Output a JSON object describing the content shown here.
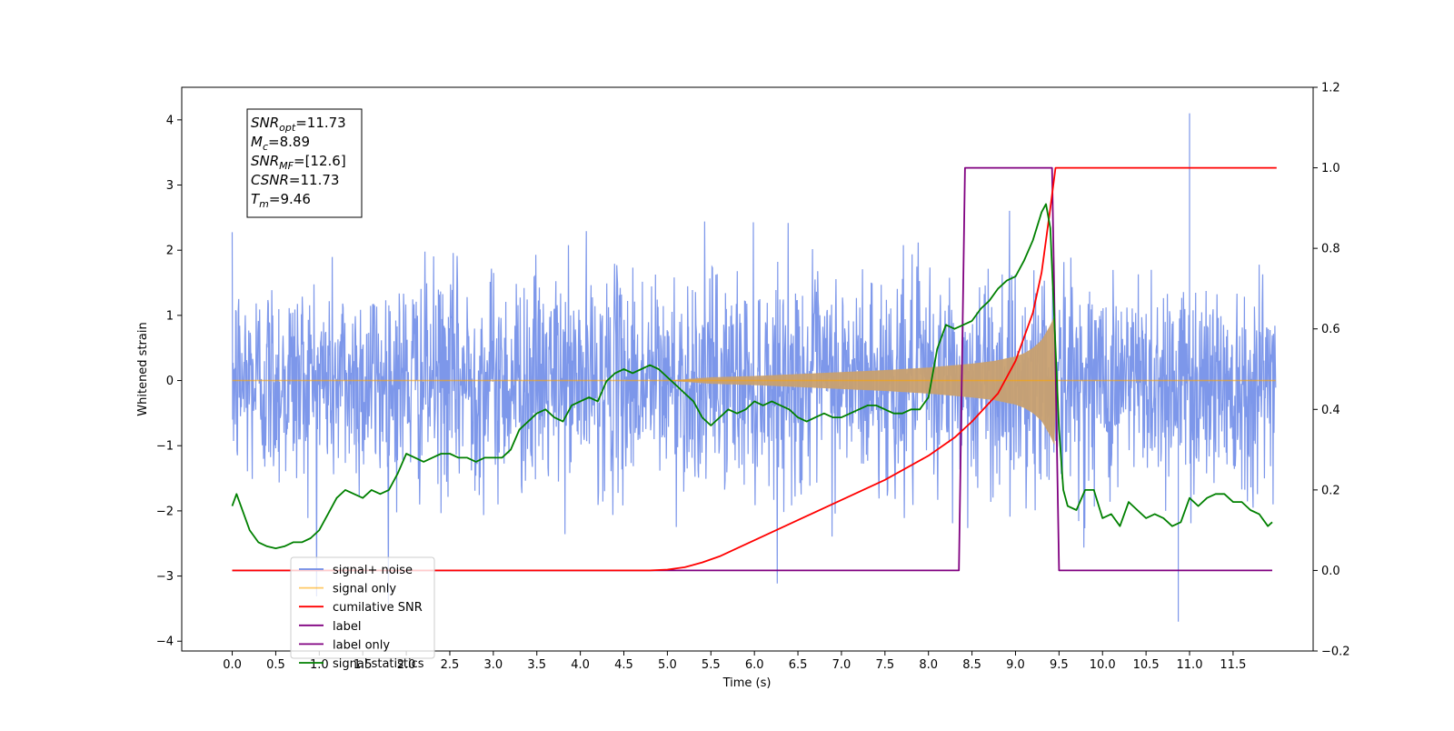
{
  "chart_data": {
    "type": "line",
    "xlabel": "Time (s)",
    "ylabel": "Whitened strain",
    "xlim": [
      -0.58,
      12.42
    ],
    "ylim": [
      -4.15,
      4.5
    ],
    "y2lim": [
      -0.2,
      1.2
    ],
    "xticks": [
      "0.0",
      "0.5",
      "1.0",
      "1.5",
      "2.0",
      "2.5",
      "3.0",
      "3.5",
      "4.0",
      "4.5",
      "5.0",
      "5.5",
      "6.0",
      "6.5",
      "7.0",
      "7.5",
      "8.0",
      "8.5",
      "9.0",
      "9.5",
      "10.0",
      "10.5",
      "11.0",
      "11.5"
    ],
    "yticks": [
      "4",
      "3",
      "2",
      "1",
      "0",
      "−1",
      "−2",
      "−3",
      "−4"
    ],
    "y2ticks": [
      "1.2",
      "1.0",
      "0.8",
      "0.6",
      "0.4",
      "0.2",
      "0.0",
      "−0.2"
    ],
    "grid": false,
    "legend_placement": "lower-left",
    "series": [
      {
        "name": "signal+ noise",
        "axis": "left",
        "color": "#6f8ce8",
        "description_values": {
          "t_start": 0.0,
          "t_end": 11.99,
          "typical_range": [
            -2.0,
            2.3
          ],
          "extremes": [
            -3.7,
            4.1
          ],
          "max_at_t": 11.0
        }
      },
      {
        "name": "signal only",
        "axis": "left",
        "color": "#ffa500",
        "envelope": {
          "t": [
            0.0,
            5.0,
            5.5,
            6.0,
            6.5,
            7.0,
            7.5,
            8.0,
            8.5,
            8.75,
            9.0,
            9.1,
            9.2,
            9.3,
            9.4,
            9.45,
            9.46,
            11.99
          ],
          "amp": [
            0.0,
            0.0,
            0.05,
            0.07,
            0.1,
            0.13,
            0.16,
            0.2,
            0.26,
            0.3,
            0.37,
            0.42,
            0.5,
            0.62,
            0.85,
            1.0,
            0.0,
            0.0
          ]
        }
      },
      {
        "name": "cumilative SNR",
        "axis": "right",
        "color": "#ff0000",
        "x": [
          0.0,
          4.8,
          5.0,
          5.2,
          5.4,
          5.6,
          5.8,
          6.0,
          6.5,
          7.0,
          7.5,
          8.0,
          8.3,
          8.5,
          8.8,
          9.0,
          9.2,
          9.3,
          9.4,
          9.46,
          9.5,
          12.0
        ],
        "y": [
          0.0,
          0.0,
          0.002,
          0.008,
          0.02,
          0.035,
          0.055,
          0.075,
          0.125,
          0.175,
          0.225,
          0.285,
          0.33,
          0.37,
          0.44,
          0.52,
          0.64,
          0.74,
          0.9,
          1.0,
          1.0,
          1.0
        ]
      },
      {
        "name": "label",
        "axis": "right",
        "color": "#800080",
        "x": [
          0.0,
          8.35,
          8.42,
          9.42,
          9.5,
          11.95
        ],
        "y": [
          0.0,
          0.0,
          1.0,
          1.0,
          0.0,
          0.0
        ]
      },
      {
        "name": "label only",
        "axis": "right",
        "color": "#800080",
        "hidden": true,
        "x": [],
        "y": []
      },
      {
        "name": "signal statistics",
        "axis": "right",
        "color": "#008000",
        "x": [
          0.0,
          0.05,
          0.1,
          0.2,
          0.3,
          0.4,
          0.5,
          0.6,
          0.7,
          0.8,
          0.9,
          1.0,
          1.1,
          1.2,
          1.3,
          1.4,
          1.5,
          1.6,
          1.7,
          1.8,
          1.9,
          2.0,
          2.1,
          2.2,
          2.3,
          2.4,
          2.5,
          2.6,
          2.7,
          2.8,
          2.9,
          3.0,
          3.1,
          3.2,
          3.3,
          3.4,
          3.5,
          3.6,
          3.7,
          3.8,
          3.9,
          4.0,
          4.1,
          4.2,
          4.3,
          4.4,
          4.5,
          4.6,
          4.7,
          4.8,
          4.9,
          5.0,
          5.1,
          5.2,
          5.3,
          5.4,
          5.5,
          5.6,
          5.7,
          5.8,
          5.9,
          6.0,
          6.1,
          6.2,
          6.3,
          6.4,
          6.5,
          6.6,
          6.7,
          6.8,
          6.9,
          7.0,
          7.1,
          7.2,
          7.3,
          7.4,
          7.5,
          7.6,
          7.7,
          7.8,
          7.9,
          8.0,
          8.1,
          8.2,
          8.3,
          8.4,
          8.5,
          8.6,
          8.7,
          8.8,
          8.9,
          9.0,
          9.1,
          9.2,
          9.3,
          9.35,
          9.4,
          9.45,
          9.5,
          9.55,
          9.6,
          9.7,
          9.8,
          9.9,
          10.0,
          10.1,
          10.2,
          10.3,
          10.4,
          10.5,
          10.6,
          10.7,
          10.8,
          10.9,
          11.0,
          11.1,
          11.2,
          11.3,
          11.4,
          11.5,
          11.6,
          11.7,
          11.8,
          11.9,
          11.95
        ],
        "y": [
          0.16,
          0.19,
          0.16,
          0.1,
          0.07,
          0.06,
          0.055,
          0.06,
          0.07,
          0.07,
          0.08,
          0.1,
          0.14,
          0.18,
          0.2,
          0.19,
          0.18,
          0.2,
          0.19,
          0.2,
          0.24,
          0.29,
          0.28,
          0.27,
          0.28,
          0.29,
          0.29,
          0.28,
          0.28,
          0.27,
          0.28,
          0.28,
          0.28,
          0.3,
          0.35,
          0.37,
          0.39,
          0.4,
          0.38,
          0.37,
          0.41,
          0.42,
          0.43,
          0.42,
          0.47,
          0.49,
          0.5,
          0.49,
          0.5,
          0.51,
          0.5,
          0.48,
          0.46,
          0.44,
          0.42,
          0.38,
          0.36,
          0.38,
          0.4,
          0.39,
          0.4,
          0.42,
          0.41,
          0.42,
          0.41,
          0.4,
          0.38,
          0.37,
          0.38,
          0.39,
          0.38,
          0.38,
          0.39,
          0.4,
          0.41,
          0.41,
          0.4,
          0.39,
          0.39,
          0.4,
          0.4,
          0.43,
          0.55,
          0.61,
          0.6,
          0.61,
          0.62,
          0.65,
          0.67,
          0.7,
          0.72,
          0.73,
          0.77,
          0.82,
          0.89,
          0.91,
          0.85,
          0.6,
          0.35,
          0.2,
          0.16,
          0.15,
          0.2,
          0.2,
          0.13,
          0.14,
          0.11,
          0.17,
          0.15,
          0.13,
          0.14,
          0.13,
          0.11,
          0.12,
          0.18,
          0.16,
          0.18,
          0.19,
          0.19,
          0.17,
          0.17,
          0.15,
          0.14,
          0.11,
          0.12
        ]
      }
    ]
  },
  "legend": {
    "items": [
      {
        "label": "signal+ noise",
        "color": "#6f8ce8"
      },
      {
        "label": "signal only",
        "color": "#ffa500"
      },
      {
        "label": "cumilative SNR",
        "color": "#ff0000"
      },
      {
        "label": "label",
        "color": "#800080"
      },
      {
        "label": "label only",
        "color": "#800080"
      },
      {
        "label": "signal statistics",
        "color": "#008000"
      }
    ]
  },
  "info_box": {
    "lines": [
      {
        "sym": "SNR",
        "sub": "opt",
        "value": "=11.73"
      },
      {
        "sym": "M",
        "sub": "c",
        "value": "=8.89"
      },
      {
        "sym": "SNR",
        "sub": "MF",
        "value": "=[12.6]"
      },
      {
        "sym": "CSNR",
        "sub": "",
        "value": "=11.73"
      },
      {
        "sym": "T",
        "sub": "m",
        "value": "=9.46"
      }
    ]
  }
}
